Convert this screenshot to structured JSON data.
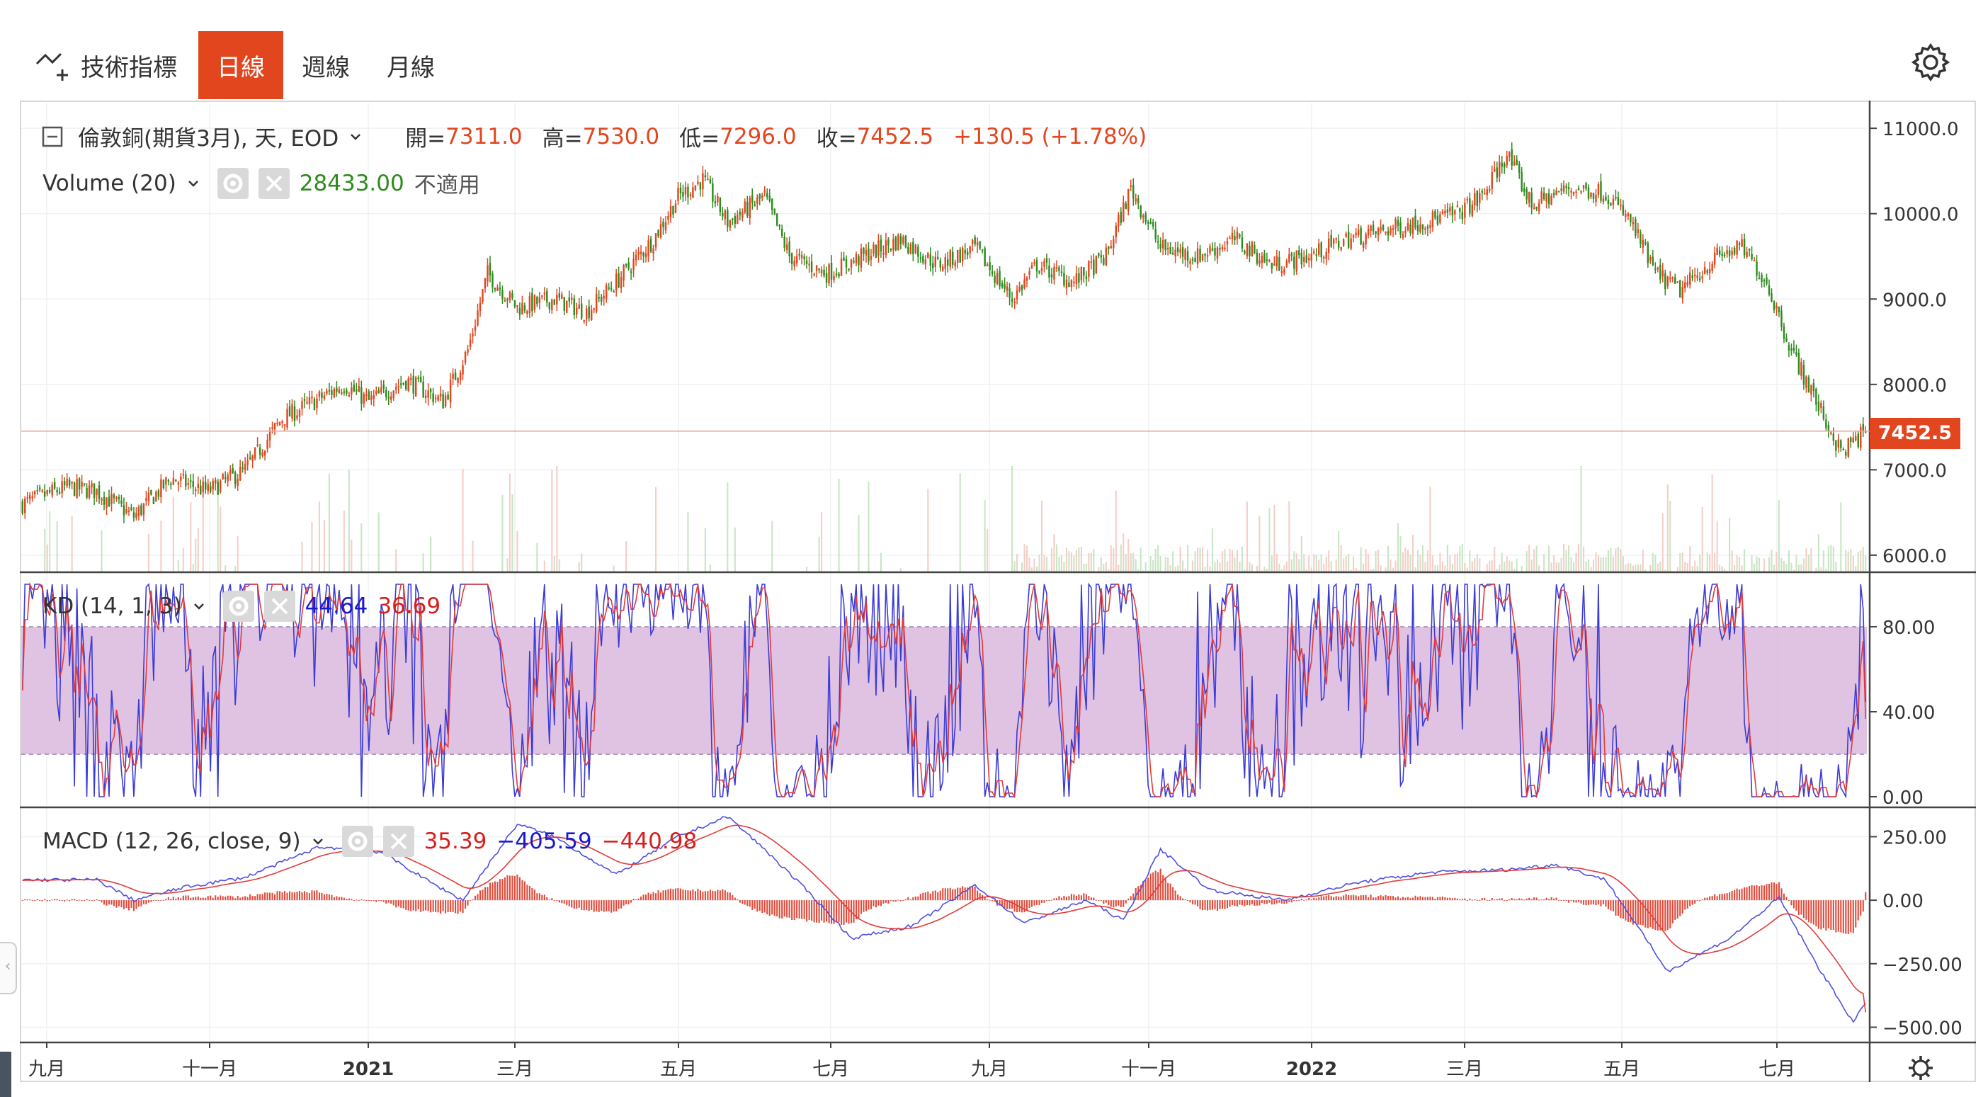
{
  "toolbar": {
    "indicators_label": "技術指標",
    "tabs": [
      {
        "label": "日線",
        "active": true
      },
      {
        "label": "週線",
        "active": false
      },
      {
        "label": "月線",
        "active": false
      }
    ],
    "settings_icon": "gear-icon"
  },
  "legend": {
    "symbol": "倫敦銅(期貨3月), 天, EOD",
    "open_label": "開=",
    "open": "7311.0",
    "high_label": "高=",
    "high": "7530.0",
    "low_label": "低=",
    "low": "7296.0",
    "close_label": "收=",
    "close": "7452.5",
    "change": "+130.5 (+1.78%)",
    "volume_name": "Volume (20)",
    "volume_value": "28433.00",
    "volume_extra": "不適用",
    "kd_name": "KD (14, 1, 3)",
    "kd_k": "44.64",
    "kd_d": "36.69",
    "macd_name": "MACD (12, 26, close, 9)",
    "macd_hist": "35.39",
    "macd_macd": "−405.59",
    "macd_signal": "−440.98"
  },
  "price_tag": "7452.5",
  "colors": {
    "accent": "#e2461f",
    "up": "#e2461f",
    "down": "#2e8b1f",
    "k_line": "#3b3bd6",
    "d_line": "#e23b3b",
    "kd_band": "#d8b4dc",
    "vol_value": "#2e8b1f"
  },
  "chart_data": [
    {
      "type": "candlestick",
      "name": "price",
      "ylim": [
        5800,
        11300
      ],
      "y_ticks": [
        "11000.0",
        "10000.0",
        "9000.0",
        "8000.0",
        "7000.0",
        "6000.0"
      ],
      "x_ticks": [
        "九月",
        "十一月",
        "2021",
        "三月",
        "五月",
        "七月",
        "九月",
        "十一月",
        "2022",
        "三月",
        "五月",
        "七月"
      ],
      "last_close": 7452.5,
      "approx_close_path": [
        [
          0,
          6600
        ],
        [
          18,
          6800
        ],
        [
          30,
          6750
        ],
        [
          45,
          6450
        ],
        [
          60,
          6900
        ],
        [
          75,
          6750
        ],
        [
          90,
          7000
        ],
        [
          105,
          7600
        ],
        [
          118,
          7800
        ],
        [
          130,
          8000
        ],
        [
          140,
          7800
        ],
        [
          155,
          8050
        ],
        [
          170,
          7800
        ],
        [
          180,
          8400
        ],
        [
          188,
          9300
        ],
        [
          200,
          8900
        ],
        [
          215,
          9000
        ],
        [
          228,
          8850
        ],
        [
          240,
          9200
        ],
        [
          255,
          9700
        ],
        [
          265,
          10200
        ],
        [
          275,
          10400
        ],
        [
          285,
          9900
        ],
        [
          300,
          10200
        ],
        [
          310,
          9500
        ],
        [
          325,
          9300
        ],
        [
          340,
          9500
        ],
        [
          355,
          9700
        ],
        [
          370,
          9400
        ],
        [
          385,
          9600
        ],
        [
          400,
          9000
        ],
        [
          410,
          9400
        ],
        [
          425,
          9200
        ],
        [
          438,
          9500
        ],
        [
          448,
          10300
        ],
        [
          460,
          9600
        ],
        [
          475,
          9500
        ],
        [
          490,
          9700
        ],
        [
          505,
          9400
        ],
        [
          520,
          9500
        ],
        [
          535,
          9700
        ],
        [
          550,
          9800
        ],
        [
          565,
          9900
        ],
        [
          580,
          10000
        ],
        [
          590,
          10200
        ],
        [
          600,
          10700
        ],
        [
          610,
          10100
        ],
        [
          625,
          10300
        ],
        [
          640,
          10250
        ],
        [
          650,
          9900
        ],
        [
          660,
          9300
        ],
        [
          670,
          9100
        ],
        [
          685,
          9500
        ],
        [
          695,
          9600
        ],
        [
          705,
          9200
        ],
        [
          715,
          8400
        ],
        [
          725,
          7800
        ],
        [
          735,
          7200
        ],
        [
          745,
          7452.5
        ]
      ]
    },
    {
      "type": "bar",
      "name": "Volume (20)",
      "last_value": 28433.0
    },
    {
      "type": "line",
      "name": "KD (14, 1, 3)",
      "ylim": [
        0,
        100
      ],
      "y_ticks": [
        "80.00",
        "40.00",
        "0.00"
      ],
      "band": [
        20,
        80
      ],
      "series": [
        {
          "name": "K",
          "last": 44.64
        },
        {
          "name": "D",
          "last": 36.69
        }
      ]
    },
    {
      "type": "line",
      "name": "MACD (12, 26, close, 9)",
      "ylim": [
        -560,
        360
      ],
      "y_ticks": [
        "250.00",
        "0.00",
        "−250.00",
        "−500.00"
      ],
      "series": [
        {
          "name": "Histogram",
          "last": 35.39
        },
        {
          "name": "MACD",
          "last": -405.59
        },
        {
          "name": "Signal",
          "last": -440.98
        }
      ],
      "approx_macd_path": [
        [
          0,
          80
        ],
        [
          30,
          80
        ],
        [
          45,
          0
        ],
        [
          65,
          50
        ],
        [
          90,
          90
        ],
        [
          120,
          210
        ],
        [
          145,
          190
        ],
        [
          165,
          70
        ],
        [
          178,
          0
        ],
        [
          200,
          300
        ],
        [
          215,
          250
        ],
        [
          240,
          100
        ],
        [
          265,
          250
        ],
        [
          285,
          330
        ],
        [
          300,
          200
        ],
        [
          320,
          10
        ],
        [
          335,
          -150
        ],
        [
          360,
          -100
        ],
        [
          385,
          60
        ],
        [
          405,
          -90
        ],
        [
          430,
          0
        ],
        [
          445,
          -80
        ],
        [
          460,
          200
        ],
        [
          480,
          40
        ],
        [
          510,
          0
        ],
        [
          540,
          70
        ],
        [
          570,
          110
        ],
        [
          600,
          120
        ],
        [
          620,
          140
        ],
        [
          640,
          80
        ],
        [
          665,
          -280
        ],
        [
          690,
          -150
        ],
        [
          710,
          10
        ],
        [
          725,
          -250
        ],
        [
          740,
          -480
        ],
        [
          745,
          -405
        ]
      ]
    }
  ]
}
